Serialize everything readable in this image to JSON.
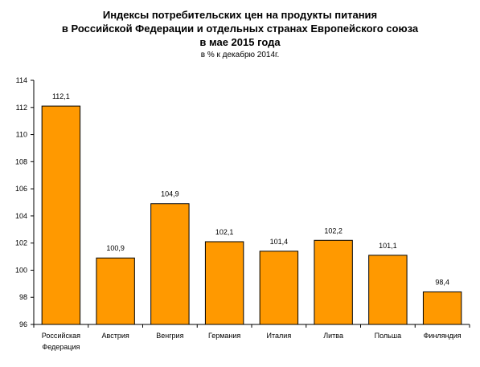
{
  "chart_data": {
    "type": "bar",
    "title_lines": [
      "Индексы потребительских цен на продукты питания",
      "в Российской Федерации и отдельных странах Европейского союза",
      "в мае 2015 года"
    ],
    "subtitle": "в % к декабрю 2014г.",
    "categories": [
      [
        "Российская",
        "Федерация"
      ],
      [
        "Австрия"
      ],
      [
        "Венгрия"
      ],
      [
        "Германия"
      ],
      [
        "Италия"
      ],
      [
        "Литва"
      ],
      [
        "Польша"
      ],
      [
        "Финляндия"
      ]
    ],
    "values": [
      112.1,
      100.9,
      104.9,
      102.1,
      101.4,
      102.2,
      101.1,
      98.4
    ],
    "data_labels": [
      "112,1",
      "100,9",
      "104,9",
      "102,1",
      "101,4",
      "102,2",
      "101,1",
      "98,4"
    ],
    "ylim": [
      96,
      114
    ],
    "yticks": [
      96,
      98,
      100,
      102,
      104,
      106,
      108,
      110,
      112,
      114
    ],
    "xlabel": "",
    "ylabel": "",
    "grid": false,
    "legend": false,
    "bar_color": "#FF9900",
    "bar_edge_color": "#000000"
  }
}
